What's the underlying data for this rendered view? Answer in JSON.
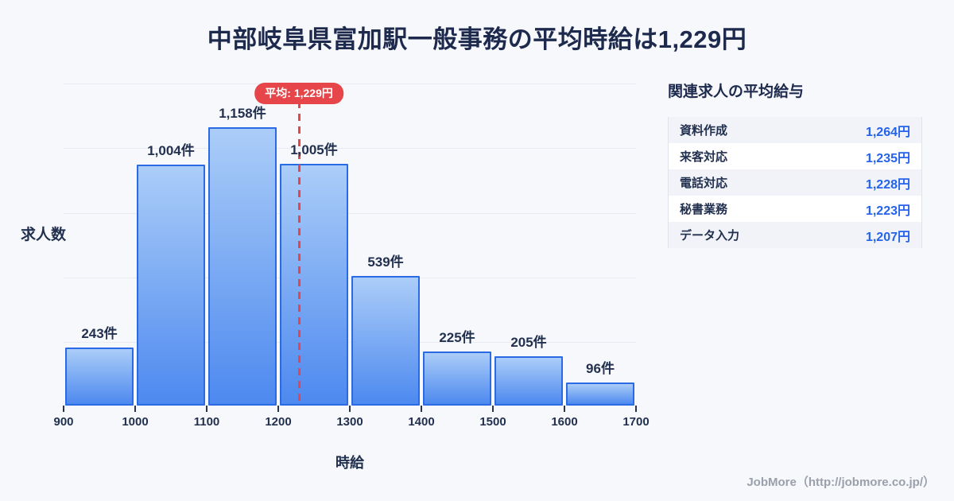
{
  "title": "中部岐阜県富加駅一般事務の平均時給は1,229円",
  "chart_data": {
    "type": "bar",
    "subtype": "histogram",
    "title": "中部岐阜県富加駅一般事務の平均時給は1,229円",
    "xlabel": "時給",
    "ylabel": "求人数",
    "bin_edges": [
      900,
      1000,
      1100,
      1200,
      1300,
      1400,
      1500,
      1600,
      1700
    ],
    "values": [
      243,
      1004,
      1158,
      1005,
      539,
      225,
      205,
      96
    ],
    "unit_suffix": "件",
    "average": 1229,
    "average_label": "平均: 1,229円",
    "ylim": [
      0,
      1360
    ],
    "grid": true,
    "legend": false
  },
  "panel": {
    "title": "関連求人の平均給与",
    "rows": [
      {
        "label": "資料作成",
        "value": "1,264円"
      },
      {
        "label": "来客対応",
        "value": "1,235円"
      },
      {
        "label": "電話対応",
        "value": "1,228円"
      },
      {
        "label": "秘書業務",
        "value": "1,223円"
      },
      {
        "label": "データ入力",
        "value": "1,207円"
      }
    ]
  },
  "footer": {
    "credit": "JobMore（http://jobmore.co.jp/）"
  },
  "colors": {
    "background": "#f7f8fb",
    "title_navy": "#1d2a4e",
    "bar_fill_top": "#abcdf8",
    "bar_fill_bottom": "#4d89ef",
    "bar_border": "#2a6ae4",
    "average_red": "#e64549",
    "value_blue": "#2563eb",
    "footer_gray": "#9aa0ab"
  }
}
